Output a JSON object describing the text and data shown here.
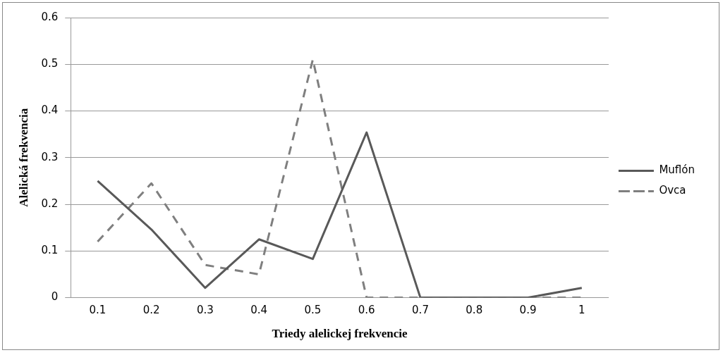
{
  "chart_data": {
    "type": "line",
    "xlabel": "Triedy alelickej frekvencie",
    "ylabel": "Alelická frekvencia",
    "categories": [
      "0.1",
      "0.2",
      "0.3",
      "0.4",
      "0.5",
      "0.6",
      "0.7",
      "0.8",
      "0.9",
      "1"
    ],
    "series": [
      {
        "name": "Muflón",
        "color": "#595959",
        "line_style": "solid",
        "values": [
          0.25,
          0.146,
          0.021,
          0.125,
          0.083,
          0.354,
          0,
          0,
          0,
          0.021
        ]
      },
      {
        "name": "Ovca",
        "color": "#7f7f7f",
        "line_style": "dashed",
        "values": [
          0.12,
          0.245,
          0.07,
          0.05,
          0.51,
          0,
          0,
          0,
          0,
          0
        ]
      }
    ],
    "ylim": [
      0,
      0.6
    ],
    "yticks": [
      0,
      0.1,
      0.2,
      0.3,
      0.4,
      0.5,
      0.6
    ],
    "grid": "y",
    "legend": "right",
    "marker": "none"
  }
}
